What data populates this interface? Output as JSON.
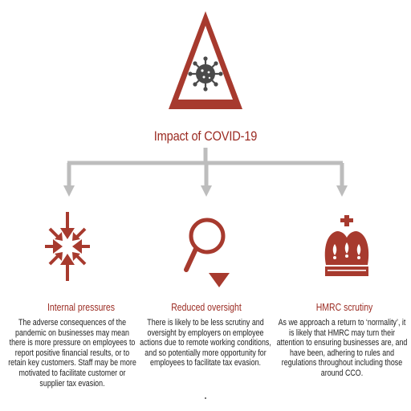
{
  "colors": {
    "accent": "#a73a2e",
    "title_text": "#9b2b22",
    "connector": "#bdbdbd",
    "body_text": "#222222"
  },
  "header": {
    "icon": "warning-triangle-virus-icon",
    "title": "Impact of COVID-19"
  },
  "columns": [
    {
      "icon": "inward-arrows-icon",
      "title": "Internal pressures",
      "text": "The adverse consequences of the pandemic on businesses may mean there is more pressure on employees to report positive financial results, or to retain key customers. Staff may be more motivated to facilitate customer or supplier tax evasion."
    },
    {
      "icon": "magnifying-glass-down-icon",
      "title": "Reduced oversight",
      "text": "There is likely to be less scrutiny and oversight by employers on employee actions due to remote working conditions, and so potentially more opportunity for employees to facilitate tax evasion."
    },
    {
      "icon": "crown-icon",
      "title": "HMRC scrutiny",
      "text": "As we approach a return to ‘normality’, it is likely that HMRC may turn their attention to ensuring businesses are, and have been, adhering to rules and regulations throughout including those around CCO."
    }
  ]
}
